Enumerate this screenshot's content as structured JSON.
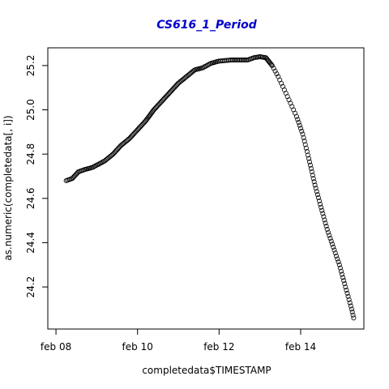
{
  "chart_data": {
    "type": "scatter",
    "title": "CS616_1_Period",
    "xlabel": "completedata$TIMESTAMP",
    "ylabel": "as.numeric(completedata[, i])",
    "x_unit": "days (Feb)",
    "xlim": [
      7.8,
      15.55
    ],
    "ylim": [
      24.01,
      25.28
    ],
    "x_ticks": [
      {
        "value": 8,
        "label": "feb 08"
      },
      {
        "value": 10,
        "label": "feb 10"
      },
      {
        "value": 12,
        "label": "feb 12"
      },
      {
        "value": 14,
        "label": "feb 14"
      }
    ],
    "y_ticks": [
      {
        "value": 24.2,
        "label": "24.2"
      },
      {
        "value": 24.4,
        "label": "24.4"
      },
      {
        "value": 24.6,
        "label": "24.6"
      },
      {
        "value": 24.8,
        "label": "24.8"
      },
      {
        "value": 25.0,
        "label": "25.0"
      },
      {
        "value": 25.2,
        "label": "25.2"
      }
    ],
    "grid": false,
    "legend": "none",
    "marker": "open-circle",
    "series": [
      {
        "color": "#000000",
        "curve": [
          [
            8.25,
            24.68
          ],
          [
            8.4,
            24.69
          ],
          [
            8.55,
            24.72
          ],
          [
            8.7,
            24.73
          ],
          [
            8.9,
            24.74
          ],
          [
            9.2,
            24.77
          ],
          [
            9.4,
            24.8
          ],
          [
            9.6,
            24.84
          ],
          [
            9.8,
            24.87
          ],
          [
            10.0,
            24.91
          ],
          [
            10.2,
            24.95
          ],
          [
            10.4,
            25.0
          ],
          [
            10.6,
            25.04
          ],
          [
            10.8,
            25.08
          ],
          [
            11.0,
            25.12
          ],
          [
            11.2,
            25.15
          ],
          [
            11.4,
            25.18
          ],
          [
            11.6,
            25.19
          ],
          [
            11.8,
            25.21
          ],
          [
            12.0,
            25.22
          ],
          [
            12.3,
            25.225
          ],
          [
            12.7,
            25.225
          ],
          [
            12.85,
            25.235
          ],
          [
            13.0,
            25.24
          ],
          [
            13.15,
            25.235
          ],
          [
            13.3,
            25.2
          ],
          [
            13.45,
            25.15
          ],
          [
            13.6,
            25.09
          ],
          [
            13.75,
            25.03
          ],
          [
            13.9,
            24.97
          ],
          [
            14.05,
            24.89
          ],
          [
            14.2,
            24.78
          ],
          [
            14.35,
            24.66
          ],
          [
            14.5,
            24.56
          ],
          [
            14.65,
            24.46
          ],
          [
            14.8,
            24.38
          ],
          [
            14.95,
            24.3
          ],
          [
            15.1,
            24.2
          ],
          [
            15.25,
            24.1
          ],
          [
            15.3,
            24.06
          ]
        ]
      }
    ]
  }
}
